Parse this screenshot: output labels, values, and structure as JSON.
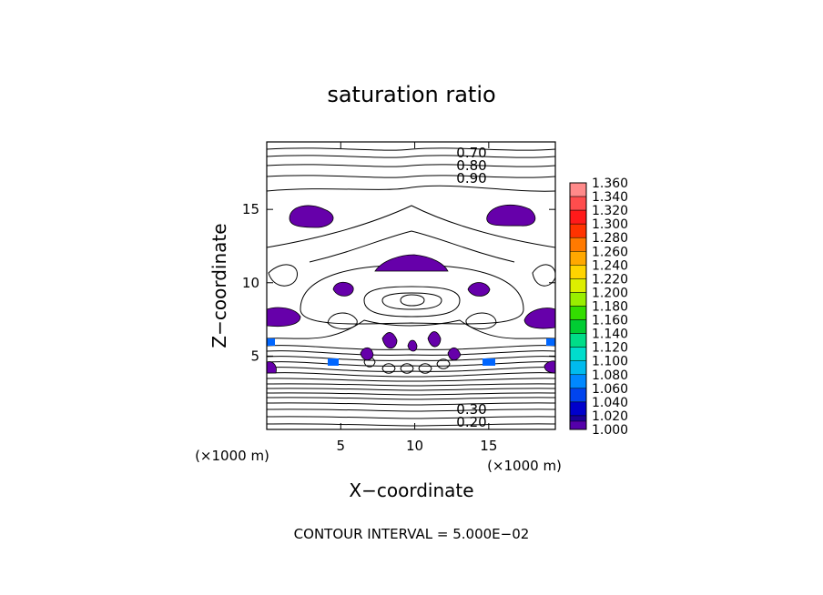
{
  "chart_data": {
    "type": "heatmap",
    "title": "saturation ratio",
    "xlabel": "X−coordinate",
    "ylabel": "Z−coordinate",
    "x_unit": "(×1000 m)",
    "y_unit": "(×1000 m)",
    "xlim": [
      0,
      19.5
    ],
    "ylim": [
      0,
      19.6
    ],
    "xticks": [
      5,
      10,
      15
    ],
    "yticks": [
      5,
      10,
      15
    ],
    "footer": "CONTOUR INTERVAL = 5.000E−02",
    "contour_labels_top": [
      "0.70",
      "0.80",
      "0.90"
    ],
    "contour_labels_bottom": [
      "0.30",
      "0.20"
    ],
    "colorbar": {
      "levels": [
        "1.360",
        "1.340",
        "1.320",
        "1.300",
        "1.280",
        "1.260",
        "1.240",
        "1.220",
        "1.200",
        "1.180",
        "1.160",
        "1.140",
        "1.120",
        "1.100",
        "1.080",
        "1.060",
        "1.040",
        "1.020",
        "1.000"
      ],
      "colors": [
        "#ff8a8a",
        "#ff4d4d",
        "#ff1a1a",
        "#ff3300",
        "#ff7a00",
        "#ffa800",
        "#ffd400",
        "#ddee00",
        "#99ee00",
        "#33dd00",
        "#00cc33",
        "#00dd88",
        "#00ddcc",
        "#00bbee",
        "#0088ff",
        "#0044ee",
        "#0000cc",
        "#1a0099",
        "#5500aa"
      ]
    },
    "supersaturated_regions_color": "#6600aa"
  }
}
